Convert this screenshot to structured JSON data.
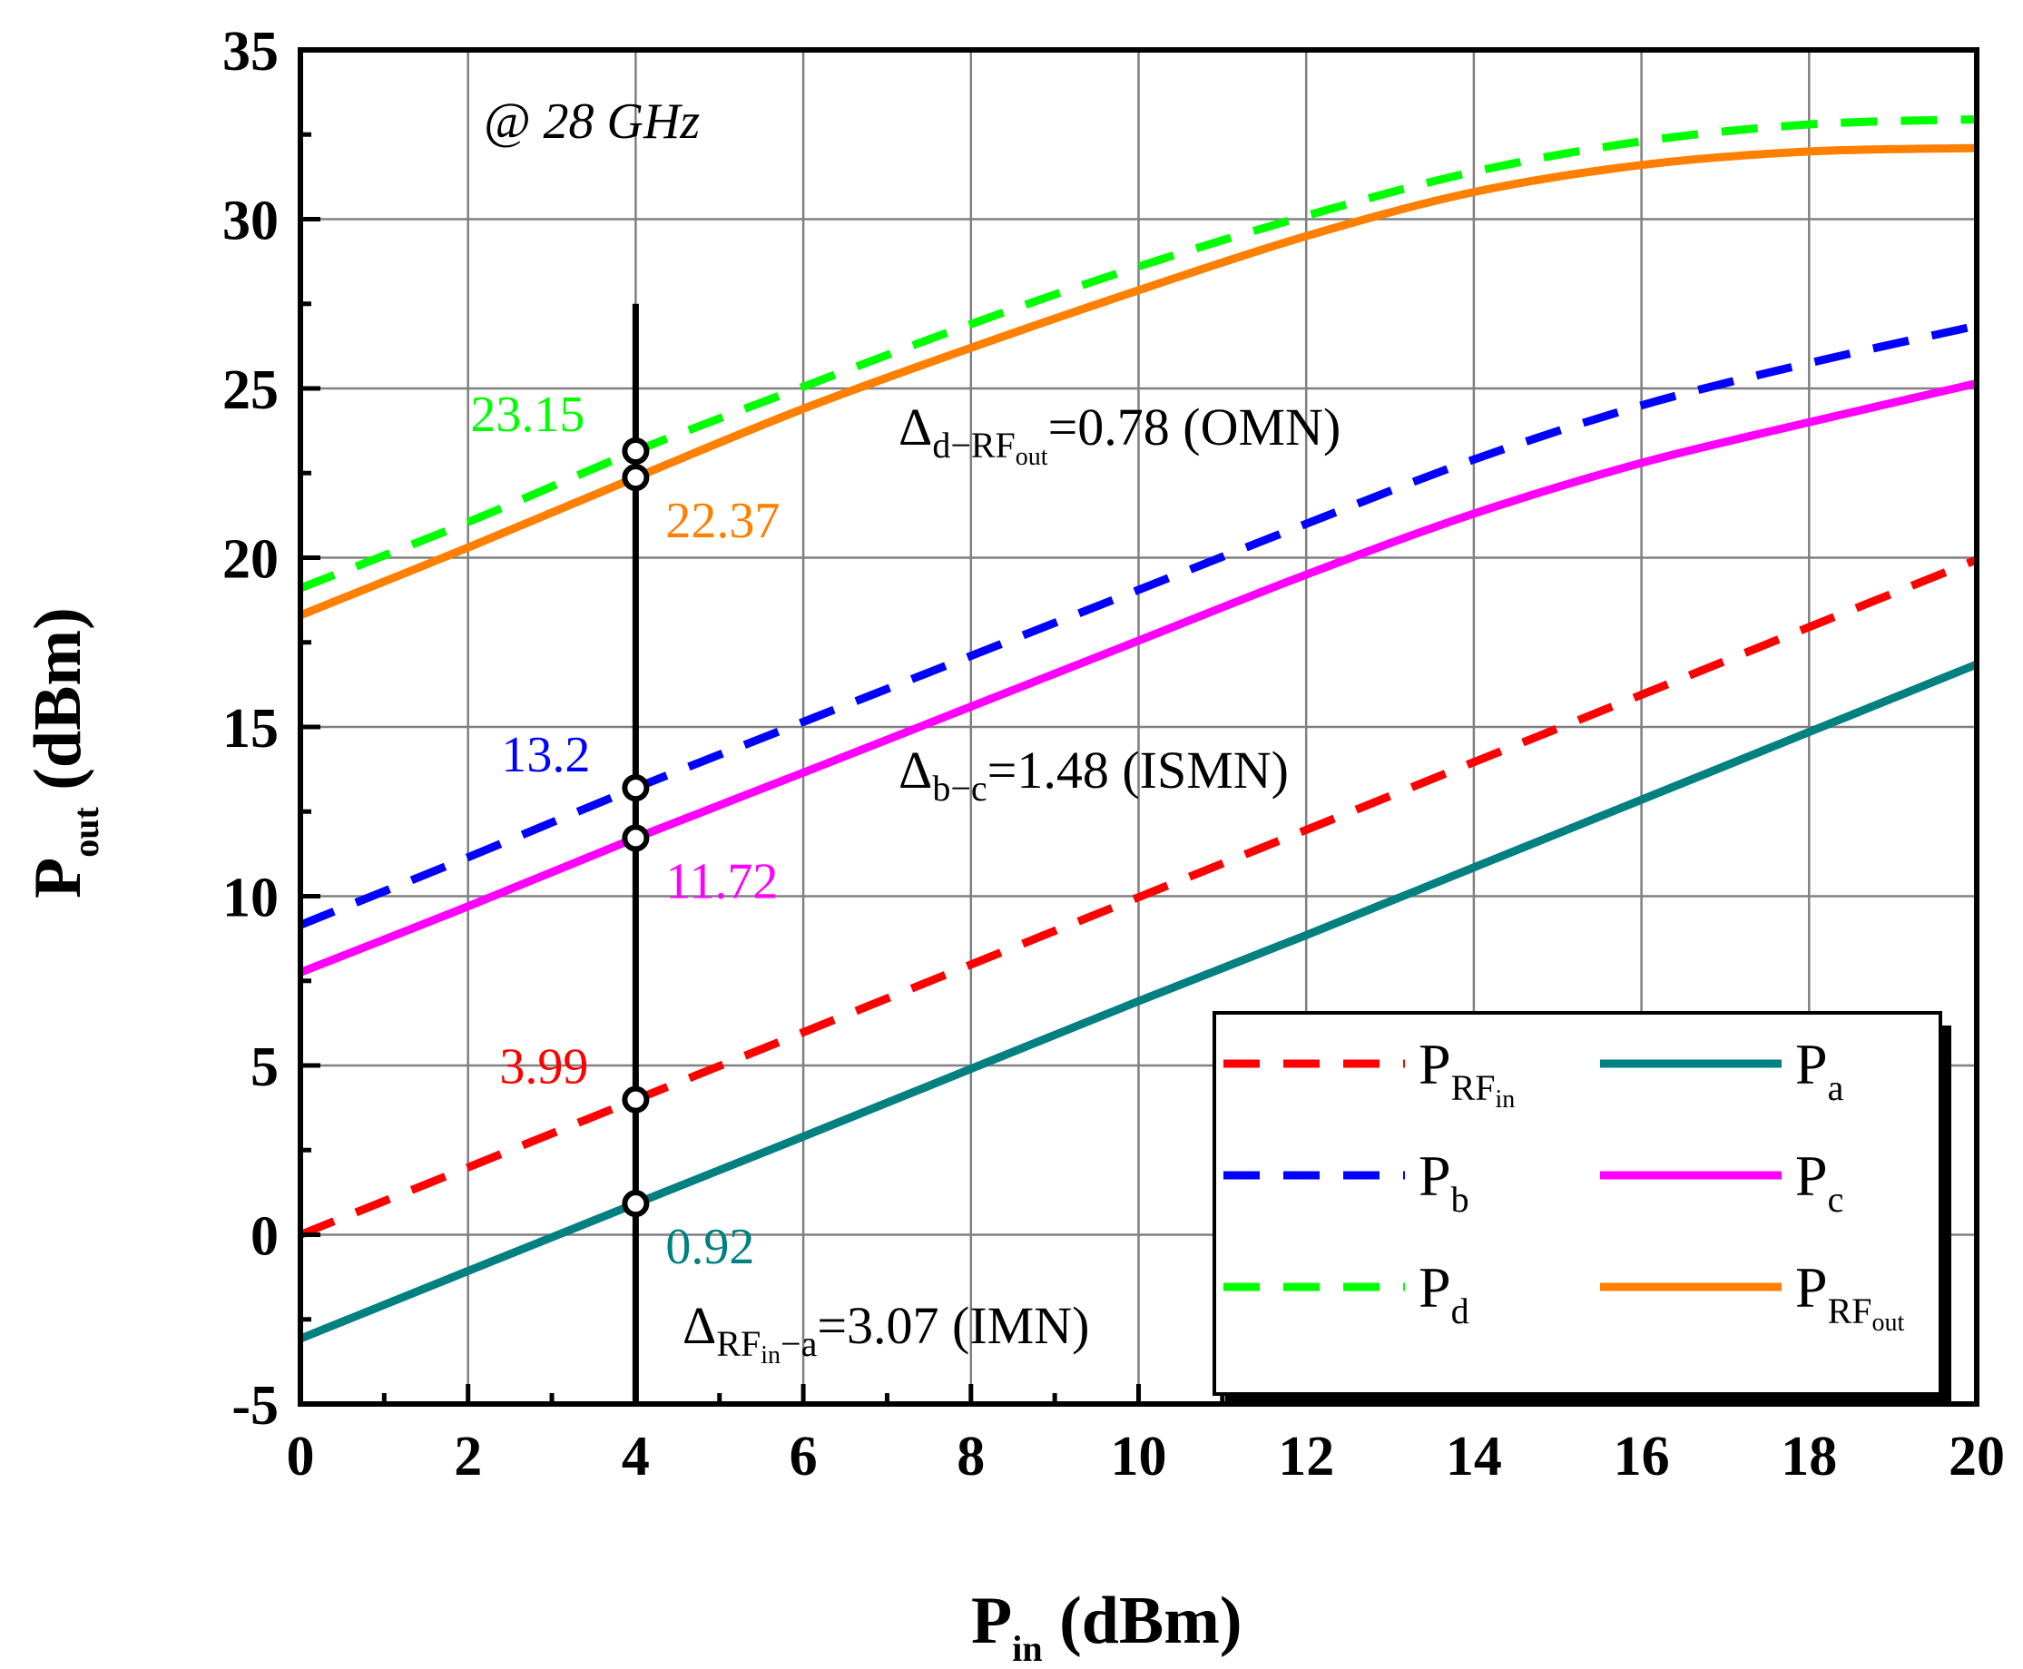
{
  "chart_data": {
    "type": "line",
    "title": "",
    "annotation": "@ 28 GHz",
    "xlabel": {
      "main": "P",
      "sub": "in",
      "rest": " (dBm)"
    },
    "ylabel": {
      "main": "P",
      "sub": "out",
      "rest": " (dBm)"
    },
    "xlim": [
      0,
      20
    ],
    "ylim": [
      -5,
      35
    ],
    "xticks": [
      0,
      2,
      4,
      6,
      8,
      10,
      12,
      14,
      16,
      18,
      20
    ],
    "yticks": [
      -5,
      0,
      5,
      10,
      15,
      20,
      25,
      30,
      35
    ],
    "grid": true,
    "series": [
      {
        "key": "rfin",
        "name": "P_RFin",
        "label_main": "P",
        "label_sub": "RF",
        "label_subsub": "in",
        "color": "#ff0000",
        "dashed": true,
        "x": [
          0,
          2,
          4,
          6,
          8,
          10,
          12,
          14,
          16,
          18,
          20
        ],
        "y": [
          0,
          1.99,
          3.99,
          5.98,
          7.98,
          9.97,
          11.96,
          13.96,
          15.95,
          17.95,
          19.94
        ]
      },
      {
        "key": "a",
        "name": "P_a",
        "label_main": "P",
        "label_sub": "a",
        "label_subsub": "",
        "color": "#008080",
        "dashed": false,
        "x": [
          0,
          2,
          4,
          6,
          8,
          10,
          12,
          14,
          16,
          18,
          20
        ],
        "y": [
          -3.07,
          -1.07,
          0.92,
          2.9,
          4.9,
          6.9,
          8.85,
          10.85,
          12.85,
          14.85,
          16.85
        ]
      },
      {
        "key": "b",
        "name": "P_b",
        "label_main": "P",
        "label_sub": "b",
        "label_subsub": "",
        "color": "#0000ff",
        "dashed": true,
        "x": [
          0,
          2,
          4,
          6,
          8,
          10,
          12,
          14,
          16,
          18,
          20
        ],
        "y": [
          9.15,
          11.15,
          13.2,
          15.15,
          17.1,
          19.05,
          21.0,
          22.9,
          24.5,
          25.75,
          26.85
        ]
      },
      {
        "key": "c",
        "name": "P_c",
        "label_main": "P",
        "label_sub": "c",
        "label_subsub": "",
        "color": "#ff00ff",
        "dashed": false,
        "x": [
          0,
          2,
          4,
          6,
          8,
          10,
          12,
          14,
          16,
          18,
          20
        ],
        "y": [
          7.75,
          9.7,
          11.72,
          13.65,
          15.6,
          17.55,
          19.5,
          21.3,
          22.8,
          24.0,
          25.15
        ]
      },
      {
        "key": "d",
        "name": "P_d",
        "label_main": "P",
        "label_sub": "d",
        "label_subsub": "",
        "color": "#00ff00",
        "dashed": true,
        "x": [
          0,
          2,
          4,
          6,
          8,
          10,
          12,
          14,
          16,
          18,
          20
        ],
        "y": [
          19.1,
          21.05,
          23.15,
          25.05,
          26.9,
          28.6,
          30.1,
          31.4,
          32.3,
          32.8,
          32.95
        ]
      },
      {
        "key": "rfout",
        "name": "P_RFout",
        "label_main": "P",
        "label_sub": "RF",
        "label_subsub": "out",
        "color": "#ff7f00",
        "dashed": false,
        "x": [
          0,
          2,
          4,
          6,
          8,
          10,
          12,
          14,
          16,
          18,
          20
        ],
        "y": [
          18.3,
          20.3,
          22.37,
          24.4,
          26.2,
          27.9,
          29.5,
          30.8,
          31.6,
          32.0,
          32.1
        ]
      }
    ],
    "marker_line": {
      "x": 4,
      "y_from": -5,
      "y_to": 27.5
    },
    "markers": [
      {
        "x": 4,
        "y": 23.15,
        "label": "23.15",
        "color": "#00ff00"
      },
      {
        "x": 4,
        "y": 22.37,
        "label": "22.37",
        "color": "#ff7f00"
      },
      {
        "x": 4,
        "y": 13.2,
        "label": "13.2",
        "color": "#0000ff"
      },
      {
        "x": 4,
        "y": 11.72,
        "label": "11.72",
        "color": "#ff00ff"
      },
      {
        "x": 4,
        "y": 3.99,
        "label": "3.99",
        "color": "#ff0000"
      },
      {
        "x": 4,
        "y": 0.92,
        "label": "0.92",
        "color": "#008080"
      }
    ],
    "deltas": [
      {
        "key": "omn",
        "symbol": "Δ",
        "sub": "d−RF",
        "subsub": "out",
        "value": "=0.78 (OMN)"
      },
      {
        "key": "ismn",
        "symbol": "Δ",
        "sub": "b−c",
        "subsub": "",
        "value": "=1.48 (ISMN)"
      },
      {
        "key": "imn",
        "symbol": "Δ",
        "sub": "RF",
        "subsub": "in",
        "sub2": "−a",
        "value": "=3.07 (IMN)"
      }
    ],
    "legend_position": "bottom-right"
  }
}
